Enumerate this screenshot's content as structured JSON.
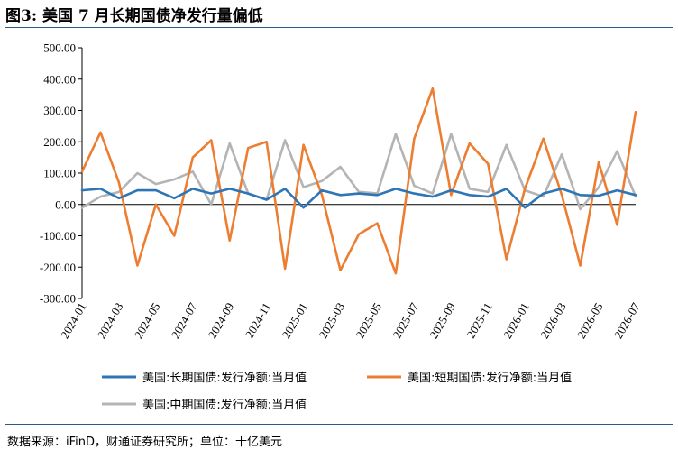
{
  "title": "图3: 美国 7 月长期国债净发行量偏低",
  "source": "数据来源：iFinD，财通证券研究所；单位：十亿美元",
  "chart_data": {
    "type": "line",
    "title": "图3: 美国 7 月长期国债净发行量偏低",
    "xlabel": "",
    "ylabel": "",
    "ylim": [
      -300,
      500
    ],
    "yticks": [
      500,
      400,
      300,
      200,
      100,
      0,
      -100,
      -200,
      -300
    ],
    "ytick_labels": [
      "500.00",
      "400.00",
      "300.00",
      "200.00",
      "100.00",
      "0.00",
      "-100.00",
      "-200.00",
      "-300.00"
    ],
    "grid": false,
    "legend_position": "bottom",
    "x": [
      "2024-01",
      "2024-02",
      "2024-03",
      "2024-04",
      "2024-05",
      "2024-06",
      "2024-07",
      "2024-08",
      "2024-09",
      "2024-10",
      "2024-11",
      "2024-12",
      "2025-01",
      "2025-02",
      "2025-03",
      "2025-04",
      "2025-05",
      "2025-06",
      "2025-07",
      "2025-08",
      "2025-09",
      "2025-10",
      "2025-11",
      "2025-12",
      "2026-01",
      "2026-02",
      "2026-03",
      "2026-04",
      "2026-05",
      "2026-06",
      "2026-07"
    ],
    "xtick_labels": [
      "2024-01",
      "2024-03",
      "2024-05",
      "2024-07",
      "2024-09",
      "2024-11",
      "2025-01",
      "2025-03",
      "2025-05",
      "2025-07",
      "2025-09",
      "2025-11",
      "2026-01",
      "2026-03",
      "2026-05",
      "2026-07"
    ],
    "series": [
      {
        "name": "美国:长期国债:发行净额:当月值",
        "color": "#2e75b6",
        "values": [
          45,
          50,
          20,
          45,
          45,
          20,
          50,
          35,
          50,
          35,
          15,
          50,
          -10,
          45,
          30,
          35,
          30,
          50,
          35,
          25,
          45,
          30,
          25,
          50,
          -10,
          35,
          50,
          30,
          28,
          45,
          30
        ]
      },
      {
        "name": "美国:短期国债:发行净额:当月值",
        "color": "#ed7d31",
        "values": [
          105,
          230,
          70,
          -195,
          0,
          -100,
          150,
          205,
          -115,
          180,
          200,
          -205,
          190,
          30,
          -210,
          -95,
          -60,
          -220,
          210,
          370,
          30,
          195,
          130,
          -175,
          50,
          210,
          30,
          -195,
          135,
          -65,
          295
        ]
      },
      {
        "name": "美国:中期国债:发行净额:当月值",
        "color": "#b4b4b4",
        "values": [
          -10,
          25,
          40,
          100,
          65,
          80,
          105,
          0,
          195,
          35,
          15,
          205,
          55,
          75,
          120,
          40,
          35,
          225,
          60,
          35,
          225,
          50,
          40,
          190,
          45,
          25,
          160,
          -15,
          55,
          170,
          25
        ]
      }
    ]
  }
}
